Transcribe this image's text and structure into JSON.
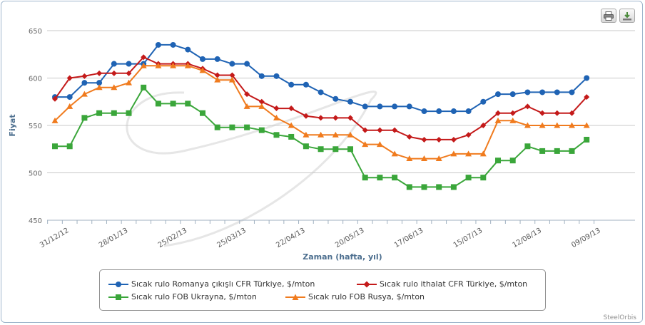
{
  "toolbar": {
    "print_icon": "printer-icon",
    "export_icon": "download-icon"
  },
  "credit": "SteelOrbis",
  "chart_data": {
    "type": "line",
    "ylabel": "Fiyat",
    "xlabel": "Zaman (hafta, yıl)",
    "ylim": [
      450,
      650
    ],
    "yticks": [
      450,
      500,
      550,
      600,
      650
    ],
    "grid": true,
    "legend_position": "bottom",
    "x_tick_labels": [
      {
        "label": "31/12/12",
        "week": 0
      },
      {
        "label": "28/01/13",
        "week": 4
      },
      {
        "label": "25/02/13",
        "week": 8
      },
      {
        "label": "25/03/13",
        "week": 12
      },
      {
        "label": "22/04/13",
        "week": 16
      },
      {
        "label": "20/05/13",
        "week": 20
      },
      {
        "label": "17/06/13",
        "week": 24
      },
      {
        "label": "15/07/13",
        "week": 28
      },
      {
        "label": "12/08/13",
        "week": 32
      },
      {
        "label": "09/09/13",
        "week": 36
      }
    ],
    "series": [
      {
        "name": "Sıcak rulo Romanya çıkışlı CFR Türkiye, $/mton",
        "color": "#1f63b4",
        "marker": "circle",
        "values": [
          580,
          580,
          595,
          595,
          615,
          615,
          615,
          635,
          635,
          630,
          620,
          620,
          615,
          615,
          602,
          602,
          593,
          593,
          585,
          578,
          575,
          570,
          570,
          570,
          570,
          565,
          565,
          565,
          565,
          575,
          583,
          583,
          585,
          585,
          585,
          585,
          600
        ]
      },
      {
        "name": "Sıcak rulo ithalat CFR Türkiye, $/mton",
        "color": "#c41a1a",
        "marker": "diamond",
        "values": [
          578,
          600,
          602,
          605,
          605,
          605,
          622,
          615,
          615,
          615,
          610,
          603,
          603,
          583,
          575,
          568,
          568,
          560,
          558,
          558,
          558,
          545,
          545,
          545,
          538,
          535,
          535,
          535,
          540,
          550,
          563,
          563,
          570,
          563,
          563,
          563,
          580
        ]
      },
      {
        "name": "Sıcak rulo FOB Ukrayna, $/mton",
        "color": "#3aa63a",
        "marker": "square",
        "values": [
          528,
          528,
          558,
          563,
          563,
          563,
          590,
          573,
          573,
          573,
          563,
          548,
          548,
          548,
          545,
          540,
          538,
          528,
          525,
          525,
          525,
          495,
          495,
          495,
          485,
          485,
          485,
          485,
          495,
          495,
          513,
          513,
          528,
          523,
          523,
          523,
          535
        ]
      },
      {
        "name": "Sıcak rulo FOB Rusya, $/mton",
        "color": "#f07b1e",
        "marker": "triangle",
        "values": [
          555,
          570,
          583,
          590,
          590,
          595,
          613,
          613,
          613,
          613,
          608,
          598,
          598,
          570,
          570,
          558,
          550,
          540,
          540,
          540,
          540,
          530,
          530,
          520,
          515,
          515,
          515,
          520,
          520,
          520,
          555,
          555,
          550,
          550,
          550,
          550,
          550
        ]
      }
    ]
  }
}
